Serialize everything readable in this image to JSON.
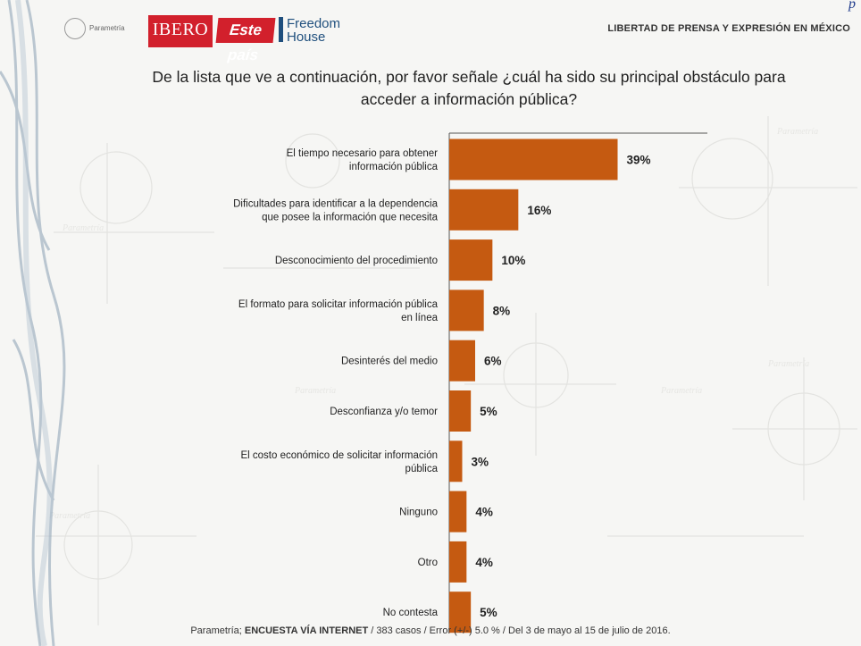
{
  "header": {
    "logo_parametria": "Parametría",
    "logo_ibero": "IBERO",
    "logo_estepais": "Este país",
    "logo_freedom_line1": "Freedom",
    "logo_freedom_line2": "House",
    "title": "LIBERTAD DE PRENSA Y EXPRESIÓN EN MÉXICO",
    "page_mark": "p"
  },
  "question_line1": "De la lista que ve a continuación, por favor señale ¿cuál ha sido su principal obstáculo para",
  "question_line2": "acceder a información pública?",
  "colors": {
    "bar": "#c55a11",
    "axis": "#555555",
    "text": "#222222"
  },
  "chart_data": {
    "type": "bar",
    "orientation": "horizontal",
    "title": "",
    "xlabel": "",
    "ylabel": "",
    "xlim": [
      0,
      60
    ],
    "grid": false,
    "categories": [
      [
        "El tiempo necesario para obtener",
        "información pública"
      ],
      [
        "Dificultades para identificar a la dependencia",
        "que posee la información que necesita"
      ],
      [
        "Desconocimiento del procedimiento"
      ],
      [
        "El formato para solicitar información pública",
        "en línea"
      ],
      [
        "Desinterés del medio"
      ],
      [
        "Desconfianza y/o temor"
      ],
      [
        "El costo económico de solicitar información",
        "pública"
      ],
      [
        "Ninguno"
      ],
      [
        "Otro"
      ],
      [
        "No contesta"
      ]
    ],
    "values": [
      39,
      16,
      10,
      8,
      6,
      5,
      3,
      4,
      4,
      5
    ],
    "value_labels": [
      "39%",
      "16%",
      "10%",
      "8%",
      "6%",
      "5%",
      "3%",
      "4%",
      "4%",
      "5%"
    ]
  },
  "footer": {
    "prefix": "Parametría; ",
    "survey": "ENCUESTA VÍA INTERNET",
    "rest": " /  383 casos / Error (+/-) 5.0 % / Del 3 de mayo al 15 de julio de 2016."
  }
}
